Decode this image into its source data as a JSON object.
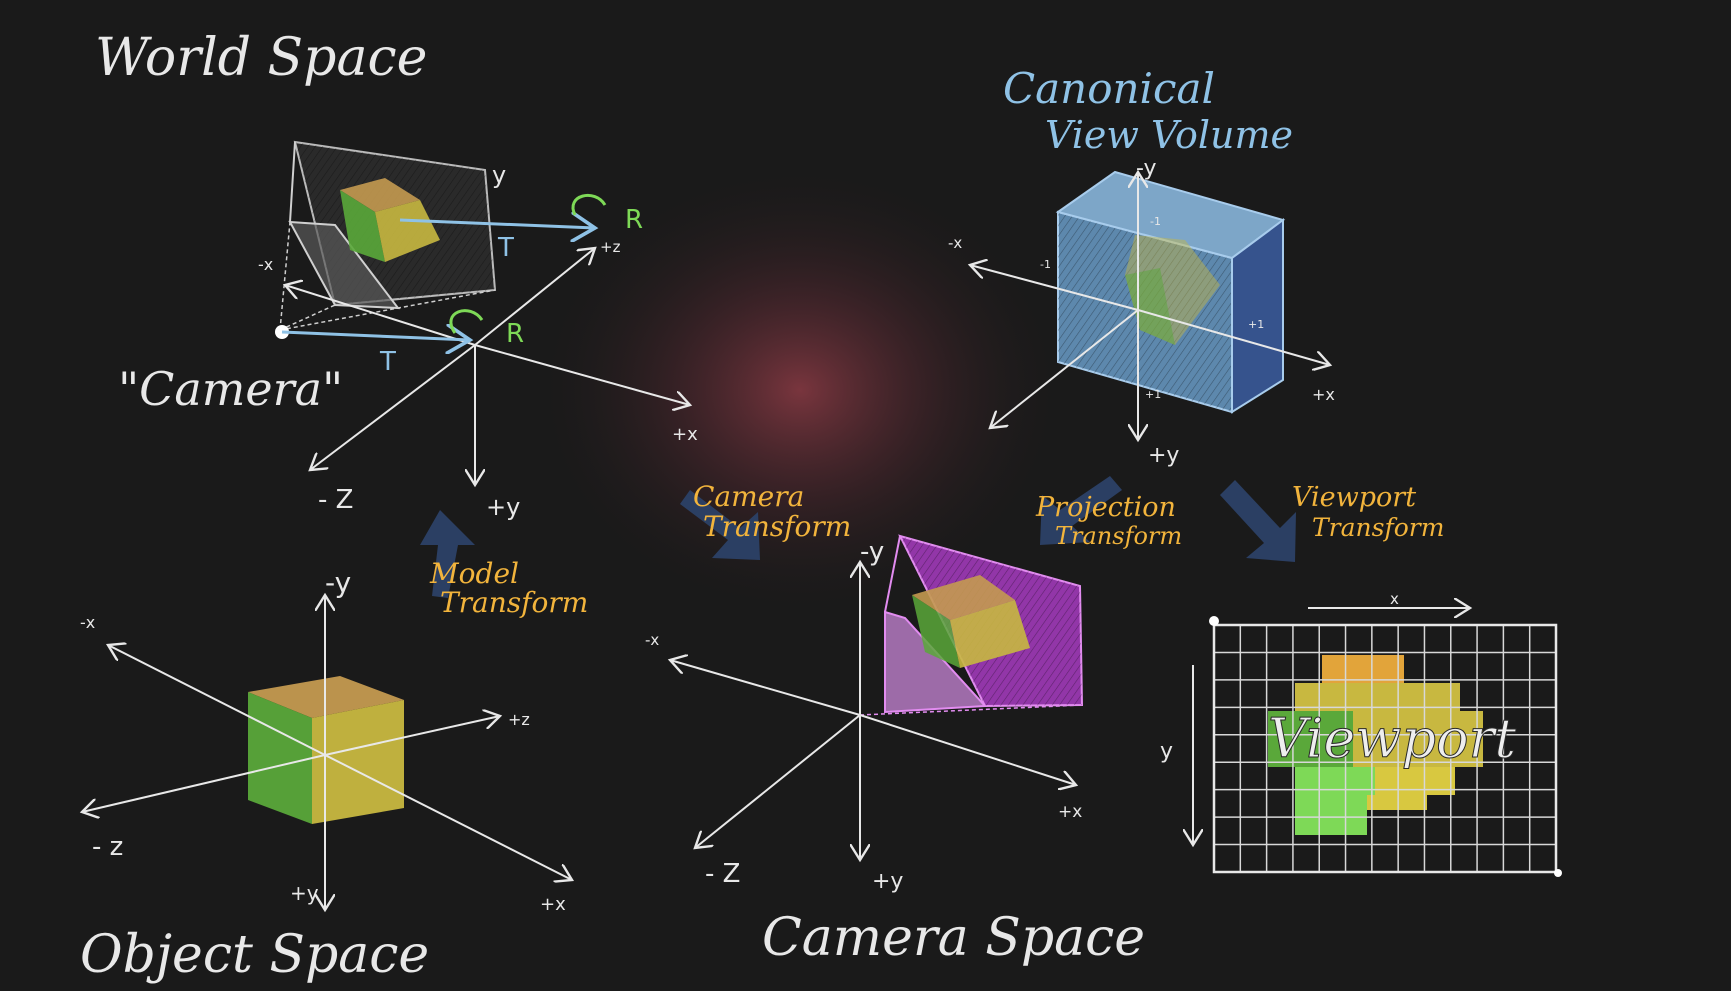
{
  "titles": {
    "world_space": "World Space",
    "object_space": "Object Space",
    "camera_space": "Camera Space",
    "canonical_line1": "Canonical",
    "canonical_line2": "View Volume",
    "camera_quoted": "\"Camera\""
  },
  "transforms": {
    "model_line1": "Model",
    "model_line2": "Transform",
    "camera_line1": "Camera",
    "camera_line2": "Transform",
    "projection_line1": "Projection",
    "projection_line2": "Transform",
    "viewport_line1": "Viewport",
    "viewport_line2": "Transform"
  },
  "world_labels": {
    "y": "y",
    "neg_x": "-x",
    "pos_z": "+z",
    "pos_x": "+x",
    "neg_z": "- Z",
    "pos_y": "+y",
    "T": "T",
    "R": "R"
  },
  "object_labels": {
    "neg_y": "-y",
    "neg_x": "-x",
    "pos_z": "+z",
    "neg_z": "- z",
    "pos_y": "+y",
    "pos_x": "+x"
  },
  "camera_labels": {
    "neg_y": "-y",
    "neg_x": "-x",
    "pos_x": "+x",
    "neg_z": "- Z",
    "pos_y": "+y"
  },
  "canonical_labels": {
    "neg_y": "-y",
    "neg_x": "-x",
    "pos_x": "+x",
    "pos_y": "+y",
    "neg_one_a": "-1",
    "neg_one_b": "-1",
    "pos_one_a": "+1",
    "pos_one_b": "+1"
  },
  "viewport_labels": {
    "x": "x",
    "y": "y",
    "viewport": "Viewport"
  },
  "colors": {
    "background": "#1a1a1a",
    "chalk": "#e8e8e8",
    "orange_text": "#f2b43c",
    "blue_text": "#8fc2e6",
    "green_text": "#7ed957",
    "cube_green": "#5aa83a",
    "cube_yellow": "#c8b840",
    "cube_orange": "#c49a50",
    "frustum_purple": "#a03ab8",
    "volume_blue": "#6a9cc8",
    "arrow_navy": "#2b3f63",
    "glow_red": "#8a3a44"
  }
}
